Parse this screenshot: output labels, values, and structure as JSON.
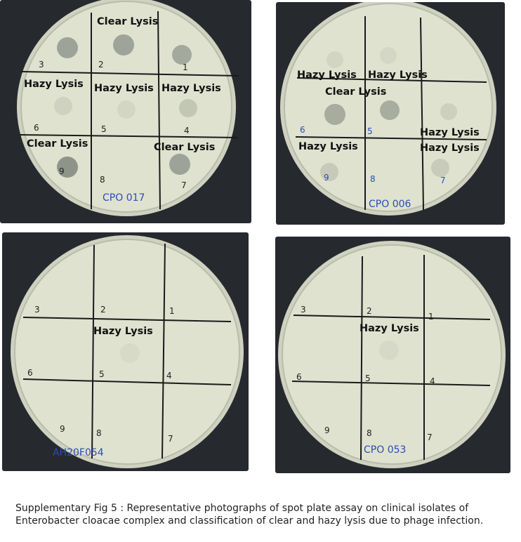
{
  "figure": {
    "caption": "Supplementary Fig 5 : Representative photographs of spot plate assay on clinical isolates of Enterobacter cloacae complex and classification of clear and hazy lysis due to phage infection."
  },
  "plates": [
    {
      "id": "CPO 017",
      "grid_numbers": [
        "3",
        "2",
        "1",
        "6",
        "5",
        "4",
        "9",
        "8",
        "7"
      ],
      "annotations": [
        "Clear Lysis",
        "Hazy Lysis",
        "Hazy Lysis",
        "Hazy Lysis",
        "Clear Lysis",
        "Clear Lysis"
      ]
    },
    {
      "id": "CPO 006",
      "grid_numbers": [
        "6",
        "5",
        "9",
        "8",
        "7"
      ],
      "annotations": [
        "Hazy Lysis",
        "Hazy Lysis",
        "Clear Lysis",
        "Hazy Lysis",
        "Hazy Lysis",
        "Hazy Lysis"
      ]
    },
    {
      "id": "AH20F054",
      "grid_numbers": [
        "3",
        "2",
        "1",
        "6",
        "5",
        "4",
        "9",
        "8",
        "7"
      ],
      "annotations": [
        "Hazy Lysis"
      ]
    },
    {
      "id": "CPO 053",
      "grid_numbers": [
        "3",
        "2",
        "1",
        "6",
        "5",
        "4",
        "9",
        "8",
        "7"
      ],
      "annotations": [
        "Hazy Lysis"
      ]
    }
  ],
  "colors": {
    "background_panel": "#26292e",
    "agar": "#dcdfcc",
    "grid_lines": "#1a1a1a",
    "handwriting_blue": "#2a4db5"
  }
}
